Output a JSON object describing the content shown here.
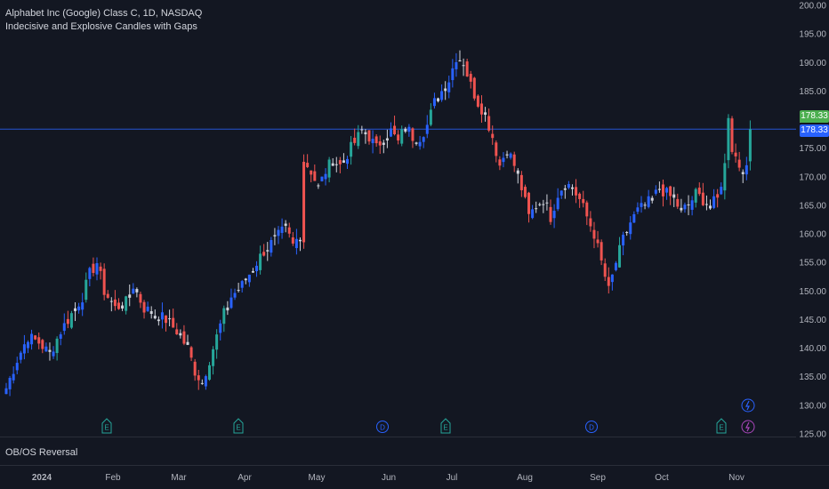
{
  "legend": {
    "symbol": "Alphabet Inc (Google) Class C, 1D, NASDAQ",
    "indicator": "Indecisive and Explosive Candles with Gaps"
  },
  "lower_pane": {
    "title": "OB/OS Reversal"
  },
  "price_labels": {
    "green": "178.33",
    "blue": "178.33"
  },
  "colors": {
    "background": "#131722",
    "up": "#26a69a",
    "down": "#ef5350",
    "up_blue": "#2962ff",
    "indecisive": "#d1d4dc",
    "axis_text": "#b2b5be",
    "price_line": "#2962ff"
  },
  "chart_data": {
    "type": "candlestick",
    "y_axis": {
      "ticks": [
        125,
        130,
        135,
        140,
        145,
        150,
        155,
        160,
        165,
        170,
        175,
        180,
        185,
        190,
        195,
        200
      ]
    },
    "x_axis": {
      "tick_labels": [
        "2024",
        "Feb",
        "Mar",
        "Apr",
        "May",
        "Jun",
        "Jul",
        "Aug",
        "Sep",
        "Oct",
        "Nov"
      ]
    },
    "current_price": 178.33,
    "events": [
      {
        "type": "earnings",
        "label": "E",
        "date": "Feb",
        "icon": "earnings-icon"
      },
      {
        "type": "earnings",
        "label": "E",
        "date": "Apr",
        "icon": "earnings-icon"
      },
      {
        "type": "dividend",
        "label": "D",
        "date": "Jun",
        "icon": "dividend-icon"
      },
      {
        "type": "earnings",
        "label": "E",
        "date": "Jul",
        "icon": "earnings-icon"
      },
      {
        "type": "dividend",
        "label": "D",
        "date": "Sep",
        "icon": "dividend-icon"
      },
      {
        "type": "earnings",
        "label": "E",
        "date": "Oct",
        "icon": "earnings-icon"
      }
    ],
    "series_trend": [
      [
        0,
        133
      ],
      [
        3,
        138
      ],
      [
        6,
        142
      ],
      [
        9,
        141
      ],
      [
        12,
        139
      ],
      [
        15,
        143
      ],
      [
        18,
        146
      ],
      [
        21,
        149
      ],
      [
        23,
        153
      ],
      [
        25,
        155
      ],
      [
        27,
        150
      ],
      [
        30,
        147
      ],
      [
        33,
        148
      ],
      [
        35,
        151
      ],
      [
        38,
        147
      ],
      [
        41,
        146
      ],
      [
        44,
        145
      ],
      [
        47,
        143
      ],
      [
        50,
        140
      ],
      [
        52,
        136
      ],
      [
        54,
        134
      ],
      [
        56,
        138
      ],
      [
        58,
        142
      ],
      [
        60,
        146
      ],
      [
        62,
        149
      ],
      [
        65,
        151
      ],
      [
        68,
        154
      ],
      [
        71,
        157
      ],
      [
        74,
        159
      ],
      [
        77,
        161
      ],
      [
        79,
        158
      ],
      [
        81,
        160
      ],
      [
        82,
        173
      ],
      [
        84,
        171
      ],
      [
        86,
        168
      ],
      [
        88,
        171
      ],
      [
        90,
        173
      ],
      [
        92,
        172
      ],
      [
        94,
        174
      ],
      [
        96,
        176
      ],
      [
        98,
        178
      ],
      [
        100,
        177
      ],
      [
        102,
        175
      ],
      [
        104,
        177
      ],
      [
        106,
        178
      ],
      [
        108,
        176
      ],
      [
        110,
        179
      ],
      [
        112,
        177
      ],
      [
        114,
        177
      ],
      [
        116,
        179
      ],
      [
        118,
        183
      ],
      [
        120,
        185
      ],
      [
        122,
        187
      ],
      [
        124,
        191
      ],
      [
        126,
        190
      ],
      [
        128,
        186
      ],
      [
        130,
        183
      ],
      [
        132,
        181
      ],
      [
        134,
        177
      ],
      [
        136,
        172
      ],
      [
        138,
        175
      ],
      [
        140,
        172
      ],
      [
        142,
        168
      ],
      [
        144,
        163
      ],
      [
        146,
        165
      ],
      [
        148,
        166
      ],
      [
        150,
        163
      ],
      [
        152,
        167
      ],
      [
        154,
        169
      ],
      [
        156,
        168
      ],
      [
        158,
        166
      ],
      [
        160,
        163
      ],
      [
        162,
        160
      ],
      [
        164,
        155
      ],
      [
        166,
        150
      ],
      [
        168,
        155
      ],
      [
        170,
        159
      ],
      [
        172,
        162
      ],
      [
        174,
        164
      ],
      [
        176,
        165
      ],
      [
        178,
        166
      ],
      [
        180,
        168
      ],
      [
        182,
        167
      ],
      [
        184,
        166
      ],
      [
        186,
        164
      ],
      [
        188,
        165
      ],
      [
        190,
        167
      ],
      [
        192,
        166
      ],
      [
        194,
        165
      ],
      [
        196,
        166
      ],
      [
        198,
        172
      ],
      [
        199,
        181
      ],
      [
        200,
        175
      ],
      [
        202,
        172
      ],
      [
        204,
        171
      ],
      [
        205,
        178.33
      ]
    ]
  }
}
